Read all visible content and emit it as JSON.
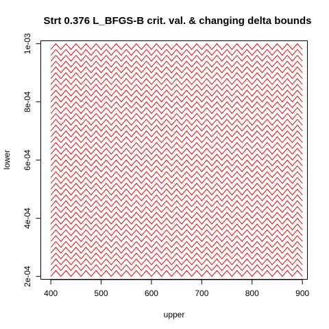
{
  "chart_data": {
    "type": "line",
    "title": "Strt 0.376 L_BFGS-B crit. val. & changing delta bounds",
    "xlabel": "upper",
    "ylabel": "lower",
    "xlim": [
      380,
      910
    ],
    "ylim": [
      0.00019,
      0.00101
    ],
    "x_ticks": [
      400,
      500,
      600,
      700,
      800,
      900
    ],
    "y_ticks": [
      0.0002,
      0.0004,
      0.0006,
      0.0008,
      0.001
    ],
    "x_tick_labels": [
      "400",
      "500",
      "600",
      "700",
      "800",
      "900"
    ],
    "y_tick_labels": [
      "2e-04",
      "4e-04",
      "6e-04",
      "8e-04",
      "1e-03"
    ],
    "grid": false,
    "legend": "none",
    "color": "#ff0000",
    "upper_range": [
      400,
      900
    ],
    "upper_step": 10,
    "lower_range": [
      0.0002,
      0.001
    ],
    "lower_step": 2e-05
  }
}
